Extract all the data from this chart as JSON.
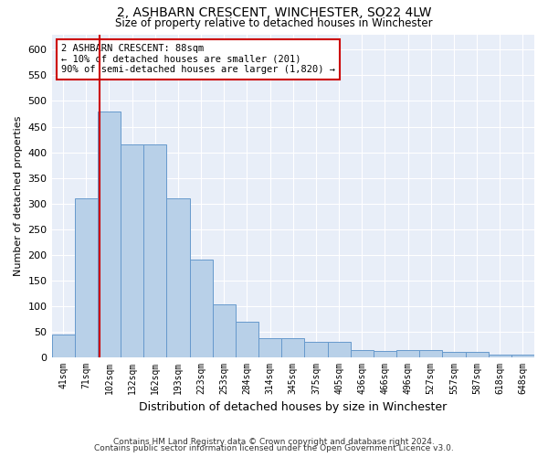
{
  "title": "2, ASHBARN CRESCENT, WINCHESTER, SO22 4LW",
  "subtitle": "Size of property relative to detached houses in Winchester",
  "xlabel": "Distribution of detached houses by size in Winchester",
  "ylabel": "Number of detached properties",
  "bin_labels": [
    "41sqm",
    "71sqm",
    "102sqm",
    "132sqm",
    "162sqm",
    "193sqm",
    "223sqm",
    "253sqm",
    "284sqm",
    "314sqm",
    "345sqm",
    "375sqm",
    "405sqm",
    "436sqm",
    "466sqm",
    "496sqm",
    "527sqm",
    "557sqm",
    "587sqm",
    "618sqm",
    "648sqm"
  ],
  "bar_values": [
    45,
    310,
    480,
    415,
    415,
    310,
    190,
    103,
    70,
    38,
    38,
    30,
    30,
    14,
    13,
    14,
    14,
    10,
    10,
    5,
    5
  ],
  "bar_color": "#b8d0e8",
  "bar_edge_color": "#6699cc",
  "ylim": [
    0,
    630
  ],
  "yticks": [
    0,
    50,
    100,
    150,
    200,
    250,
    300,
    350,
    400,
    450,
    500,
    550,
    600
  ],
  "red_line_x": 1.565,
  "annotation_text": "2 ASHBARN CRESCENT: 88sqm\n← 10% of detached houses are smaller (201)\n90% of semi-detached houses are larger (1,820) →",
  "annotation_box_color": "#ffffff",
  "annotation_box_edge": "#cc0000",
  "red_line_color": "#cc0000",
  "footer_line1": "Contains HM Land Registry data © Crown copyright and database right 2024.",
  "footer_line2": "Contains public sector information licensed under the Open Government Licence v3.0.",
  "background_color": "#ffffff",
  "plot_background": "#e8eef8"
}
